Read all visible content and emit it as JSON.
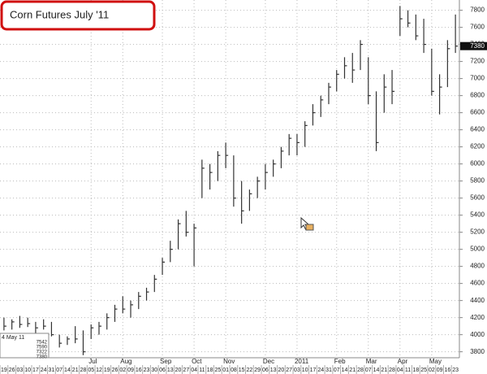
{
  "chart_data": {
    "type": "ohlc",
    "title": "Corn Futures July '11",
    "categories": [
      "19",
      "26",
      "03",
      "10",
      "17",
      "24",
      "31",
      "07",
      "14",
      "21",
      "28",
      "05",
      "12",
      "19",
      "26",
      "02",
      "09",
      "16",
      "23",
      "30",
      "06",
      "13",
      "20",
      "27",
      "04",
      "11",
      "18",
      "25",
      "01",
      "08",
      "15",
      "22",
      "29",
      "06",
      "13",
      "20",
      "27",
      "03",
      "10",
      "17",
      "24",
      "31",
      "07",
      "14",
      "21",
      "28",
      "07",
      "14",
      "21",
      "28",
      "04",
      "11",
      "18",
      "25",
      "02",
      "09",
      "16",
      "23"
    ],
    "month_labels": [
      null,
      null,
      null,
      null,
      null,
      null,
      null,
      null,
      null,
      null,
      null,
      "Jul",
      null,
      null,
      null,
      "Aug",
      null,
      null,
      null,
      null,
      "Sep",
      null,
      null,
      null,
      "Oct",
      null,
      null,
      null,
      "Nov",
      null,
      null,
      null,
      null,
      "Dec",
      null,
      null,
      null,
      "2011",
      null,
      null,
      null,
      null,
      "Feb",
      null,
      null,
      null,
      "Mar",
      null,
      null,
      null,
      "Apr",
      null,
      null,
      null,
      "May",
      null,
      null,
      null
    ],
    "high": [
      4200,
      4180,
      4220,
      4200,
      4150,
      4180,
      4150,
      4000,
      3980,
      4100,
      4050,
      4120,
      4150,
      4250,
      4350,
      4450,
      4400,
      4500,
      4550,
      4700,
      4900,
      5100,
      5350,
      5450,
      5300,
      6050,
      6000,
      6150,
      6250,
      6100,
      5800,
      5700,
      5850,
      6000,
      6050,
      6200,
      6350,
      6350,
      6500,
      6700,
      6800,
      6950,
      7100,
      7250,
      7300,
      7450,
      7250,
      6850,
      7050,
      7100,
      7850,
      7800,
      7750,
      7700,
      7350,
      7050,
      7450,
      7750
    ],
    "low": [
      4050,
      4060,
      4080,
      4090,
      4020,
      4060,
      3980,
      3850,
      3880,
      3900,
      3760,
      3950,
      4000,
      4060,
      4150,
      4250,
      4200,
      4300,
      4400,
      4500,
      4700,
      4850,
      5000,
      5150,
      4800,
      5600,
      5700,
      5800,
      5950,
      5500,
      5300,
      5450,
      5600,
      5700,
      5850,
      5950,
      6100,
      6100,
      6200,
      6450,
      6550,
      6700,
      6850,
      7000,
      6950,
      7100,
      6700,
      6150,
      6600,
      6700,
      7500,
      7600,
      7450,
      7300,
      6800,
      6580,
      6900,
      7300
    ],
    "close": [
      4100,
      4150,
      4120,
      4130,
      4080,
      4100,
      4000,
      3900,
      3950,
      3950,
      3800,
      4080,
      4100,
      4200,
      4300,
      4300,
      4350,
      4450,
      4500,
      4650,
      4850,
      5000,
      5300,
      5200,
      5250,
      5950,
      5900,
      6100,
      6100,
      5600,
      5450,
      5650,
      5800,
      5900,
      6000,
      6150,
      6300,
      6250,
      6450,
      6600,
      6750,
      6900,
      7050,
      7150,
      7100,
      7400,
      6800,
      6250,
      6900,
      6850,
      7700,
      7650,
      7500,
      7400,
      6850,
      6900,
      7350,
      7380
    ],
    "color": "#333333",
    "ylim": [
      3730,
      7920
    ],
    "yticks": [
      3800,
      4000,
      4200,
      4400,
      4600,
      4800,
      5000,
      5200,
      5400,
      5600,
      5800,
      6000,
      6200,
      6400,
      6600,
      6800,
      7000,
      7200,
      7400,
      7600,
      7800
    ],
    "grid": true,
    "last_price": 7380,
    "info_box": {
      "date": "4 May 11",
      "values": [
        7542,
        7590,
        7322,
        7380
      ]
    }
  }
}
